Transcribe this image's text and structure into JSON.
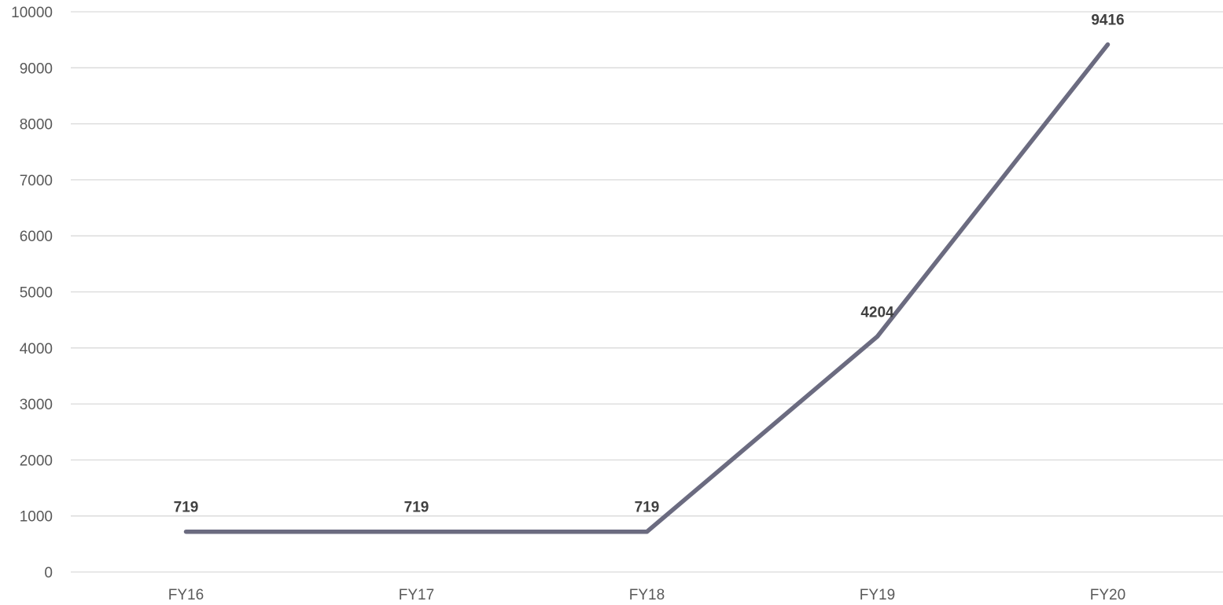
{
  "chart_data": {
    "type": "line",
    "title": "",
    "xlabel": "",
    "ylabel": "",
    "categories": [
      "FY16",
      "FY17",
      "FY18",
      "FY19",
      "FY20"
    ],
    "series": [
      {
        "values": [
          719,
          719,
          719,
          4204,
          9416
        ],
        "color": "#6b6b80"
      }
    ],
    "ylim": [
      0,
      10000
    ],
    "yticks": [
      0,
      1000,
      2000,
      3000,
      4000,
      5000,
      6000,
      7000,
      8000,
      9000,
      10000
    ],
    "data_labels": [
      "719",
      "719",
      "719",
      "4204",
      "9416"
    ],
    "grid": true,
    "legend": "none"
  }
}
